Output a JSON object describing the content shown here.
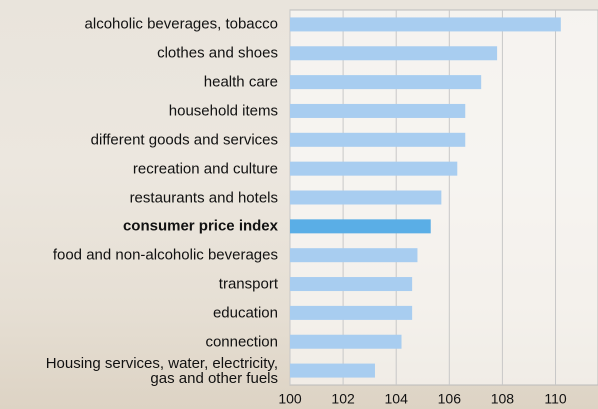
{
  "chart_data": {
    "type": "bar",
    "orientation": "horizontal",
    "categories": [
      "alcoholic beverages, tobacco",
      "clothes and shoes",
      "health care",
      "household items",
      "different goods and services",
      "recreation and culture",
      "restaurants and hotels",
      "consumer price index",
      "food and non-alcoholic beverages",
      "transport",
      "education",
      "connection",
      "Housing services, water, electricity,\ngas and other fuels"
    ],
    "values": [
      110.2,
      107.8,
      107.2,
      106.6,
      106.6,
      106.3,
      105.7,
      105.3,
      104.8,
      104.6,
      104.6,
      104.2,
      103.2
    ],
    "colors": [
      "#a8cdf0",
      "#a8cdf0",
      "#a8cdf0",
      "#a8cdf0",
      "#a8cdf0",
      "#a8cdf0",
      "#a8cdf0",
      "#5aaee6",
      "#a8cdf0",
      "#a8cdf0",
      "#a8cdf0",
      "#a8cdf0",
      "#a8cdf0"
    ],
    "bold_category": 7,
    "xlim": [
      100,
      111.6
    ],
    "xticks": [
      100,
      102,
      104,
      106,
      108,
      110
    ],
    "grid": true
  }
}
